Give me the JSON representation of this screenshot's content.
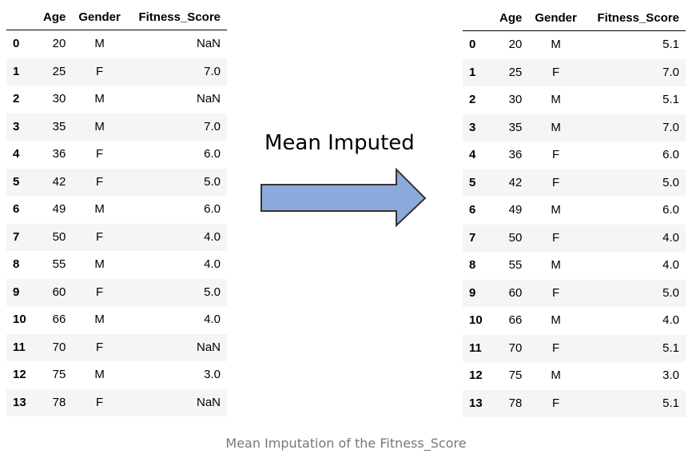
{
  "columns": [
    "Age",
    "Gender",
    "Fitness_Score"
  ],
  "left_table": {
    "rows": [
      {
        "idx": "0",
        "age": "20",
        "gender": "M",
        "score": "NaN"
      },
      {
        "idx": "1",
        "age": "25",
        "gender": "F",
        "score": "7.0"
      },
      {
        "idx": "2",
        "age": "30",
        "gender": "M",
        "score": "NaN"
      },
      {
        "idx": "3",
        "age": "35",
        "gender": "M",
        "score": "7.0"
      },
      {
        "idx": "4",
        "age": "36",
        "gender": "F",
        "score": "6.0"
      },
      {
        "idx": "5",
        "age": "42",
        "gender": "F",
        "score": "5.0"
      },
      {
        "idx": "6",
        "age": "49",
        "gender": "M",
        "score": "6.0"
      },
      {
        "idx": "7",
        "age": "50",
        "gender": "F",
        "score": "4.0"
      },
      {
        "idx": "8",
        "age": "55",
        "gender": "M",
        "score": "4.0"
      },
      {
        "idx": "9",
        "age": "60",
        "gender": "F",
        "score": "5.0"
      },
      {
        "idx": "10",
        "age": "66",
        "gender": "M",
        "score": "4.0"
      },
      {
        "idx": "11",
        "age": "70",
        "gender": "F",
        "score": "NaN"
      },
      {
        "idx": "12",
        "age": "75",
        "gender": "M",
        "score": "3.0"
      },
      {
        "idx": "13",
        "age": "78",
        "gender": "F",
        "score": "NaN"
      }
    ]
  },
  "right_table": {
    "rows": [
      {
        "idx": "0",
        "age": "20",
        "gender": "M",
        "score": "5.1"
      },
      {
        "idx": "1",
        "age": "25",
        "gender": "F",
        "score": "7.0"
      },
      {
        "idx": "2",
        "age": "30",
        "gender": "M",
        "score": "5.1"
      },
      {
        "idx": "3",
        "age": "35",
        "gender": "M",
        "score": "7.0"
      },
      {
        "idx": "4",
        "age": "36",
        "gender": "F",
        "score": "6.0"
      },
      {
        "idx": "5",
        "age": "42",
        "gender": "F",
        "score": "5.0"
      },
      {
        "idx": "6",
        "age": "49",
        "gender": "M",
        "score": "6.0"
      },
      {
        "idx": "7",
        "age": "50",
        "gender": "F",
        "score": "4.0"
      },
      {
        "idx": "8",
        "age": "55",
        "gender": "M",
        "score": "4.0"
      },
      {
        "idx": "9",
        "age": "60",
        "gender": "F",
        "score": "5.0"
      },
      {
        "idx": "10",
        "age": "66",
        "gender": "M",
        "score": "4.0"
      },
      {
        "idx": "11",
        "age": "70",
        "gender": "F",
        "score": "5.1"
      },
      {
        "idx": "12",
        "age": "75",
        "gender": "M",
        "score": "3.0"
      },
      {
        "idx": "13",
        "age": "78",
        "gender": "F",
        "score": "5.1"
      }
    ]
  },
  "arrow": {
    "label": "Mean Imputed",
    "icon": "right-arrow-icon",
    "fill_color": "#8ea9db",
    "stroke_color": "#333333"
  },
  "caption": "Mean Imputation of the Fitness_Score",
  "colors": {
    "stripe": "#f5f5f5",
    "caption_text": "#777777"
  }
}
